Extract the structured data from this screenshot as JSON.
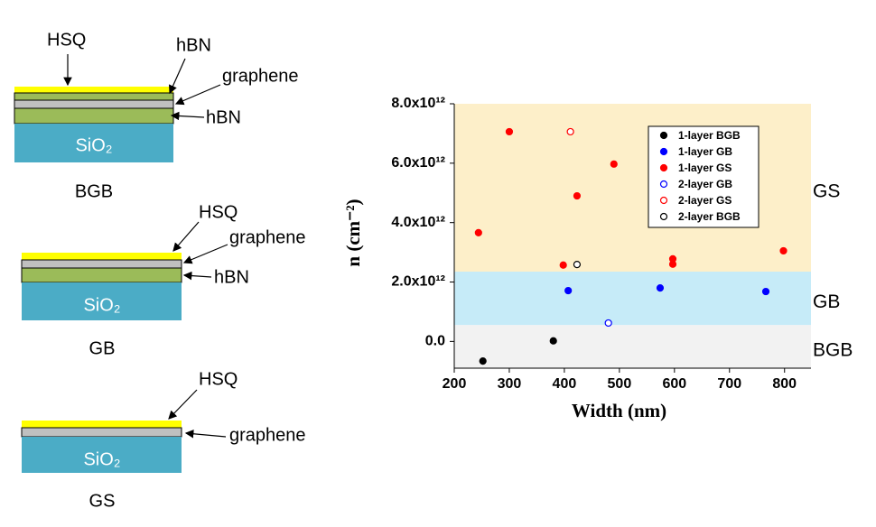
{
  "diagrams": [
    {
      "caption": "BGB",
      "substrate": "SiO₂",
      "labels": [
        "HSQ",
        "hBN",
        "graphene",
        "hBN"
      ]
    },
    {
      "caption": "GB",
      "substrate": "SiO₂",
      "labels": [
        "HSQ",
        "graphene",
        "hBN"
      ]
    },
    {
      "caption": "GS",
      "substrate": "SiO₂",
      "labels": [
        "HSQ",
        "graphene"
      ]
    }
  ],
  "chart_data": {
    "type": "scatter",
    "xlabel": "Width (nm)",
    "ylabel": "n (cm⁻²)",
    "xlim": [
      200,
      848
    ],
    "ylim": [
      -900000000000.0,
      8000000000000.0
    ],
    "xticks": [
      200,
      300,
      400,
      500,
      600,
      700,
      800
    ],
    "yticks": [
      {
        "value": 0,
        "label": "0.0"
      },
      {
        "value": 2000000000000.0,
        "label": "2.0x10¹²"
      },
      {
        "value": 4000000000000.0,
        "label": "4.0x10¹²"
      },
      {
        "value": 6000000000000.0,
        "label": "6.0x10¹²"
      },
      {
        "value": 8000000000000.0,
        "label": "8.0x10¹²"
      }
    ],
    "regions": [
      {
        "name": "GS",
        "range": [
          2350000000000.0,
          8000000000000.0
        ],
        "color": "#fdefc9"
      },
      {
        "name": "GB",
        "range": [
          550000000000.0,
          2350000000000.0
        ],
        "color": "#c6ebf8"
      },
      {
        "name": "BGB",
        "range": [
          -900000000000.0,
          550000000000.0
        ],
        "color": "#f2f2f2"
      }
    ],
    "legend_position": "upper right",
    "series": [
      {
        "name": "1-layer BGB",
        "color": "#000000",
        "filled": true,
        "x": [
          252,
          380
        ],
        "values": [
          -660000000000.0,
          20000000000.0
        ]
      },
      {
        "name": "1-layer GB",
        "color": "#0000ff",
        "filled": true,
        "x": [
          407,
          574,
          766
        ],
        "values": [
          1710000000000.0,
          1800000000000.0,
          1680000000000.0
        ]
      },
      {
        "name": "1-layer GS",
        "color": "#ff0000",
        "filled": true,
        "x": [
          244,
          300,
          398,
          423,
          490,
          597,
          597,
          798
        ],
        "values": [
          3660000000000.0,
          7060000000000.0,
          2570000000000.0,
          4900000000000.0,
          5970000000000.0,
          2780000000000.0,
          2600000000000.0,
          3050000000000.0
        ]
      },
      {
        "name": "2-layer GB",
        "color": "#0000ff",
        "filled": false,
        "x": [
          480
        ],
        "values": [
          620000000000.0
        ]
      },
      {
        "name": "2-layer GS",
        "color": "#ff0000",
        "filled": false,
        "x": [
          411
        ],
        "values": [
          7060000000000.0
        ]
      },
      {
        "name": "2-layer BGB",
        "color": "#000000",
        "filled": false,
        "x": [
          423
        ],
        "values": [
          2590000000000.0
        ]
      }
    ]
  }
}
